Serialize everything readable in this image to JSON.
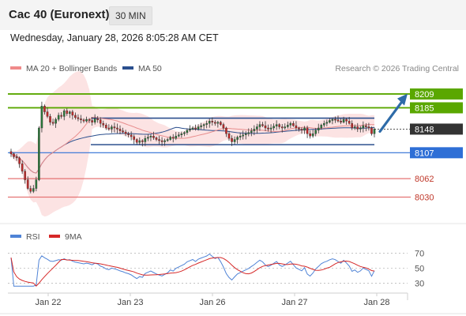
{
  "header": {
    "title": "Cac 40 (Euronext)",
    "timeframe": "30 MIN",
    "datetime": "Wednesday, January 28, 2026 8:05:28 AM CET"
  },
  "colors": {
    "resistance": "#5aa700",
    "support_blue": "#2e6fd6",
    "support_red": "#e57373",
    "current": "#333333",
    "bollinger_fill": "#fbd9d9",
    "ma20": "#e88d8d",
    "ma50": "#2b4f8e",
    "candle_up": "#2a7a3a",
    "candle_down": "#c62828",
    "rsi": "#4f83d6",
    "rsi_ma": "#d62828",
    "arrow": "#2e6ba8"
  },
  "chart_data": [
    {
      "type": "candlestick",
      "legend": [
        {
          "name": "MA 20 + Bollinger Bands",
          "color": "#f08a8a"
        },
        {
          "name": "MA 50",
          "color": "#2b4f8e"
        }
      ],
      "legend_placement": "top-left",
      "credit": "Research © 2026 Trading Central",
      "ylim": [
        7995,
        8235
      ],
      "levels": [
        {
          "value": 8209,
          "label": "8209",
          "kind": "resistance"
        },
        {
          "value": 8185,
          "label": "8185",
          "kind": "resistance"
        },
        {
          "value": 8148,
          "label": "8148",
          "kind": "current"
        },
        {
          "value": 8107,
          "label": "8107",
          "kind": "support_blue"
        },
        {
          "value": 8062,
          "label": "8062",
          "kind": "support_red"
        },
        {
          "value": 8030,
          "label": "8030",
          "kind": "support_red"
        }
      ],
      "range_box": {
        "top": 8167,
        "bottom": 8121
      },
      "x_ticks": [
        "Jan 22",
        "Jan 23",
        "Jan 26",
        "Jan 27",
        "Jan 28"
      ],
      "close": [
        8105,
        8100,
        8098,
        8088,
        8075,
        8060,
        8045,
        8040,
        8045,
        8060,
        8150,
        8188,
        8178,
        8170,
        8160,
        8158,
        8165,
        8172,
        8170,
        8180,
        8175,
        8178,
        8172,
        8168,
        8166,
        8164,
        8162,
        8165,
        8163,
        8160,
        8166,
        8164,
        8158,
        8155,
        8150,
        8148,
        8152,
        8150,
        8148,
        8145,
        8143,
        8140,
        8138,
        8135,
        8130,
        8125,
        8128,
        8126,
        8132,
        8134,
        8136,
        8133,
        8130,
        8128,
        8126,
        8128,
        8130,
        8134,
        8132,
        8136,
        8138,
        8140,
        8142,
        8146,
        8148,
        8150,
        8148,
        8152,
        8154,
        8156,
        8158,
        8162,
        8160,
        8158,
        8160,
        8156,
        8150,
        8140,
        8132,
        8126,
        8130,
        8134,
        8136,
        8138,
        8140,
        8142,
        8145,
        8148,
        8152,
        8156,
        8154,
        8150,
        8148,
        8150,
        8153,
        8156,
        8152,
        8150,
        8152,
        8155,
        8158,
        8154,
        8150,
        8148,
        8146,
        8150,
        8140,
        8136,
        8140,
        8146,
        8150,
        8155,
        8158,
        8160,
        8163,
        8165,
        8164,
        8162,
        8160,
        8165,
        8162,
        8158,
        8150,
        8152,
        8148,
        8150,
        8154,
        8152,
        8150,
        8140,
        8148
      ]
    },
    {
      "type": "line",
      "legend": [
        {
          "name": "RSI",
          "color": "#4f83d6"
        },
        {
          "name": "9MA",
          "color": "#d62828"
        }
      ],
      "ylim": [
        22,
        78
      ],
      "y_ticks": [
        70,
        50,
        30
      ],
      "reference_lines": [
        70,
        50,
        30
      ]
    }
  ]
}
